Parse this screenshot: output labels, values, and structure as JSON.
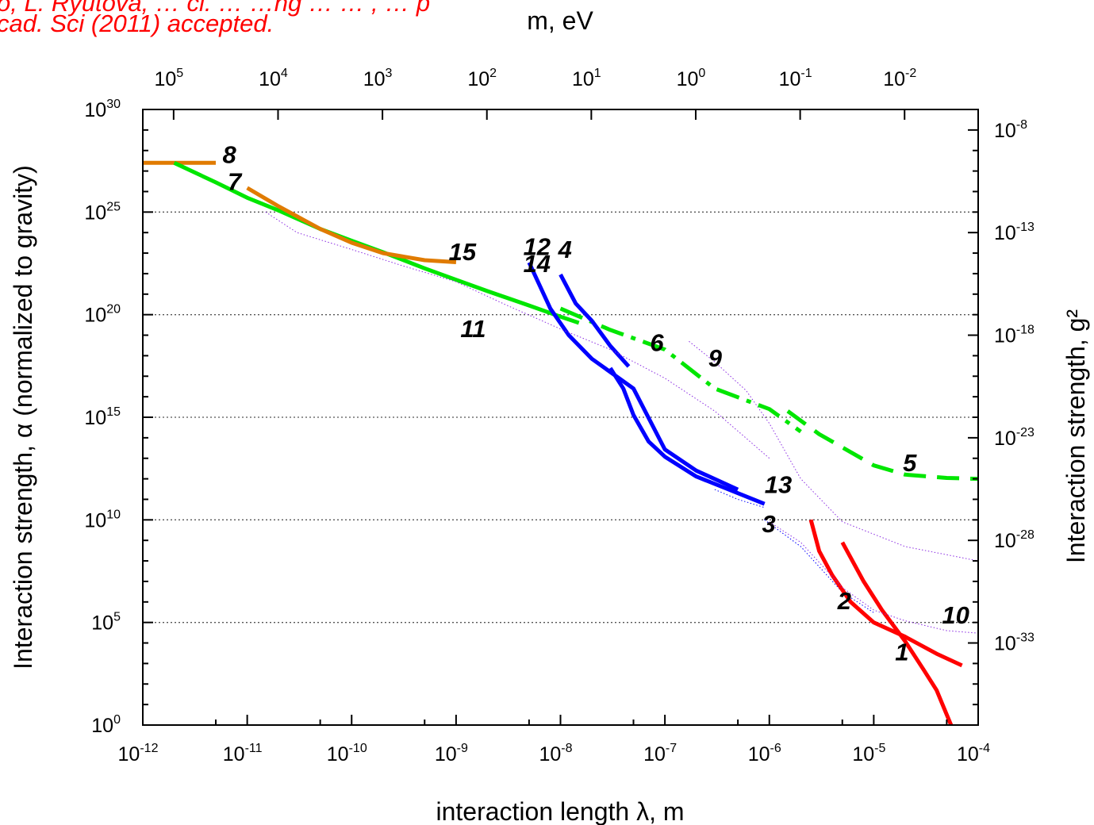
{
  "citation": {
    "line1": "o, L. Ryutova, … cl. …  …ng … … ,  …  p",
    "line2": "cad. Sci (2011) accepted."
  },
  "chart_data": {
    "type": "line",
    "title": "",
    "xlabel": "interaction length λ, m",
    "ylabel": "Interaction strength, α (normalized to gravity)",
    "x2label": "m, eV",
    "y2label": "Interaction strength, g²",
    "xscale": "log",
    "yscale": "log",
    "xlim": [
      1e-12,
      0.0001
    ],
    "ylim": [
      1,
      1e+30
    ],
    "x_ticks": [
      {
        "value": 1e-12,
        "base": "10",
        "exp": "-12"
      },
      {
        "value": 1e-11,
        "base": "10",
        "exp": "-11"
      },
      {
        "value": 1e-10,
        "base": "10",
        "exp": "-10"
      },
      {
        "value": 1e-09,
        "base": "10",
        "exp": "-9"
      },
      {
        "value": 1e-08,
        "base": "10",
        "exp": "-8"
      },
      {
        "value": 1e-07,
        "base": "10",
        "exp": "-7"
      },
      {
        "value": 1e-06,
        "base": "10",
        "exp": "-6"
      },
      {
        "value": 1e-05,
        "base": "10",
        "exp": "-5"
      },
      {
        "value": 0.0001,
        "base": "10",
        "exp": "-4"
      }
    ],
    "y_ticks": [
      {
        "value": 1,
        "base": "10",
        "exp": "0"
      },
      {
        "value": 100000.0,
        "base": "10",
        "exp": "5"
      },
      {
        "value": 10000000000.0,
        "base": "10",
        "exp": "10"
      },
      {
        "value": 1000000000000000.0,
        "base": "10",
        "exp": "15"
      },
      {
        "value": 1e+20,
        "base": "10",
        "exp": "20"
      },
      {
        "value": 1e+25,
        "base": "10",
        "exp": "25"
      },
      {
        "value": 1e+30,
        "base": "10",
        "exp": "30"
      }
    ],
    "x2_ticks": [
      {
        "ev": 100000.0,
        "base": "10",
        "exp": "5"
      },
      {
        "ev": 10000.0,
        "base": "10",
        "exp": "4"
      },
      {
        "ev": 1000.0,
        "base": "10",
        "exp": "3"
      },
      {
        "ev": 100.0,
        "base": "10",
        "exp": "2"
      },
      {
        "ev": 10.0,
        "base": "10",
        "exp": "1"
      },
      {
        "ev": 1.0,
        "base": "10",
        "exp": "0"
      },
      {
        "ev": 0.1,
        "base": "10",
        "exp": "-1"
      },
      {
        "ev": 0.01,
        "base": "10",
        "exp": "-2"
      }
    ],
    "y2_ticks": [
      {
        "alpha": 1e+29,
        "base": "10",
        "exp": "-8"
      },
      {
        "alpha": 1e+24,
        "base": "10",
        "exp": "-13"
      },
      {
        "alpha": 1e+19,
        "base": "10",
        "exp": "-18"
      },
      {
        "alpha": 100000000000000.0,
        "base": "10",
        "exp": "-23"
      },
      {
        "alpha": 1000000000.0,
        "base": "10",
        "exp": "-28"
      },
      {
        "alpha": 10000.0,
        "base": "10",
        "exp": "-33"
      }
    ],
    "grid": {
      "y": [
        100000.0,
        10000000000.0,
        1000000000000000.0,
        1e+20,
        1e+25
      ],
      "style": "dotted"
    },
    "curves": [
      {
        "label": "8",
        "color": "#e07b00",
        "style": "solid",
        "width": 5,
        "points": [
          [
            1e-12,
            2.5e+27
          ],
          [
            5e-12,
            2.5e+27
          ]
        ],
        "label_at": [
          5.8e-12,
          2.5e+27
        ]
      },
      {
        "label": "7",
        "color": "#00e600",
        "style": "solid",
        "width": 5,
        "points": [
          [
            2e-12,
            2.5e+27
          ],
          [
            5e-12,
            2.8e+26
          ],
          [
            1e-11,
            5e+25
          ],
          [
            2e-11,
            1.2e+25
          ],
          [
            5e-11,
            1.5e+24
          ],
          [
            1e-10,
            4e+23
          ],
          [
            2e-10,
            1.1e+23
          ],
          [
            5e-10,
            1.8e+22
          ],
          [
            1e-09,
            5e+21
          ],
          [
            2e-09,
            1.4e+21
          ],
          [
            5e-09,
            2.8e+20
          ],
          [
            1e-08,
            8e+19
          ],
          [
            1.5e-08,
            4e+19
          ]
        ],
        "label_at": [
          6.5e-12,
          1.2e+26
        ]
      },
      {
        "label": "15",
        "color": "#e07b00",
        "style": "solid",
        "width": 5,
        "points": [
          [
            1e-11,
            1.5e+26
          ],
          [
            2e-11,
            1.9e+25
          ],
          [
            5e-11,
            1.5e+24
          ],
          [
            1e-10,
            3.2e+23
          ],
          [
            2e-10,
            1e+23
          ],
          [
            5e-10,
            4.5e+22
          ],
          [
            1e-09,
            3.6e+22
          ]
        ],
        "label_at": [
          8.5e-10,
          4.5e+22
        ]
      },
      {
        "label": "6",
        "color": "#00e600",
        "style": "dashdot",
        "width": 5,
        "points": [
          [
            1e-08,
            2e+20
          ],
          [
            3e-08,
            1.8e+19
          ],
          [
            1e-07,
            2e+18
          ],
          [
            3e-07,
            2.5e+16
          ],
          [
            1e-06,
            2500000000000000.0
          ],
          [
            2e-06,
            200000000000000.0
          ]
        ],
        "label_at": [
          7.2e-08,
          1.7e+18
        ]
      },
      {
        "label": "5",
        "color": "#00e600",
        "style": "dash",
        "width": 5,
        "points": [
          [
            1.5e-06,
            2000000000000000.0
          ],
          [
            3e-06,
            150000000000000.0
          ],
          [
            6e-06,
            20000000000000.0
          ],
          [
            1e-05,
            4500000000000.0
          ],
          [
            2e-05,
            1600000000000.0
          ],
          [
            5e-05,
            1100000000000.0
          ],
          [
            0.0001,
            1000000000000.0
          ]
        ],
        "label_at": [
          1.9e-05,
          2400000000000.0
        ]
      },
      {
        "label": "12",
        "color": "#0000ff",
        "style": "solid",
        "width": 5,
        "points": [
          [
            5e-09,
            3.5e+22
          ],
          [
            8e-09,
            2e+20
          ],
          [
            1.2e-08,
            1e+19
          ],
          [
            2e-08,
            7e+17
          ],
          [
            5e-08,
            2.5e+16
          ],
          [
            1e-07,
            27000000000000.0
          ],
          [
            2e-07,
            2500000000000.0
          ],
          [
            5e-07,
            300000000000.0
          ]
        ],
        "label_at": [
          4.4e-09,
          8e+22
        ]
      },
      {
        "label": "4",
        "color": "#0000ff",
        "style": "solid",
        "width": 5,
        "points": [
          [
            1e-08,
            9e+21
          ],
          [
            1.4e-08,
            3.5e+20
          ],
          [
            2e-08,
            5e+19
          ],
          [
            3e-08,
            3e+18
          ],
          [
            4.5e-08,
            3e+17
          ]
        ],
        "label_at": [
          9.5e-09,
          6e+22
        ]
      },
      {
        "label": "14",
        "color": "#0000ff",
        "style": "solid",
        "width": 5,
        "points": [
          [
            3e-08,
            2.5e+17
          ],
          [
            4e-08,
            2.5e+16
          ],
          [
            5e-08,
            1300000000000000.0
          ],
          [
            7e-08,
            65000000000000.0
          ],
          [
            1e-07,
            12000000000000.0
          ],
          [
            2e-07,
            1300000000000.0
          ],
          [
            5e-07,
            200000000000.0
          ],
          [
            9e-07,
            60000000000.0
          ]
        ],
        "label_at": [
          4.4e-09,
          1.2e+22
        ]
      },
      {
        "label": "13",
        "color": "#0000ff",
        "style": "dotted-thin",
        "width": 1,
        "points": [
          [
            3e-07,
            300000000000.0
          ],
          [
            5e-07,
            100000000000.0
          ],
          [
            9e-07,
            40000000000.0
          ]
        ],
        "label_at": [
          9e-07,
          200000000000.0
        ]
      },
      {
        "label": "3",
        "color": "#0000ff",
        "style": "dotted-thin",
        "width": 1,
        "points": [
          [
            9e-07,
            10000000000.0
          ],
          [
            2e-06,
            500000000.0
          ],
          [
            5e-06,
            3000000.0
          ],
          [
            1e-05,
            300000.0
          ]
        ],
        "label_at": [
          8.5e-07,
          2500000000.0
        ]
      },
      {
        "label": "2",
        "color": "#ff0000",
        "style": "solid",
        "width": 5,
        "points": [
          [
            2.5e-06,
            10000000000.0
          ],
          [
            3e-06,
            300000000.0
          ],
          [
            4e-06,
            20000000.0
          ],
          [
            6e-06,
            1000000.0
          ],
          [
            1e-05,
            100000.0
          ],
          [
            2e-05,
            20000.0
          ],
          [
            4e-05,
            3000.0
          ],
          [
            7e-05,
            800.0
          ]
        ],
        "label_at": [
          4.5e-06,
          450000.0
        ]
      },
      {
        "label": "1",
        "color": "#ff0000",
        "style": "solid",
        "width": 5,
        "points": [
          [
            5e-06,
            800000000.0
          ],
          [
            8e-06,
            10000000.0
          ],
          [
            1.2e-05,
            400000.0
          ],
          [
            2e-05,
            12000.0
          ],
          [
            3e-05,
            500.0
          ],
          [
            4e-05,
            50.0
          ],
          [
            5.5e-05,
            1
          ]
        ],
        "label_at": [
          1.6e-05,
          1400.0
        ]
      },
      {
        "label": "9",
        "color": "#8a2be2",
        "style": "dotted-thin",
        "width": 1,
        "points": [
          [
            1.7e-07,
            5e+18
          ],
          [
            3e-07,
            5e+17
          ],
          [
            6e-07,
            2e+16
          ],
          [
            1e-06,
            500000000000000.0
          ],
          [
            2e-06,
            1000000000000.0
          ],
          [
            5e-06,
            8000000000.0
          ],
          [
            1e-05,
            2000000000.0
          ],
          [
            2e-05,
            500000000.0
          ],
          [
            5e-05,
            200000000.0
          ],
          [
            0.0001,
            100000000.0
          ]
        ],
        "label_at": [
          2.6e-07,
          3e+17
        ]
      },
      {
        "label": "10",
        "color": "#8a2be2",
        "style": "dotted-thin",
        "width": 1,
        "points": [
          [
            1e-06,
            8000000000.0
          ],
          [
            2e-06,
            800000000.0
          ],
          [
            5e-06,
            5000000.0
          ],
          [
            1e-05,
            400000.0
          ],
          [
            2e-05,
            120000.0
          ],
          [
            5e-05,
            40000.0
          ],
          [
            0.0001,
            30000.0
          ]
        ],
        "label_at": [
          4.5e-05,
          90000.0
        ]
      },
      {
        "label": "11",
        "color": "#8a2be2",
        "style": "dotted-thin",
        "width": 1,
        "points": [
          [
            1.5e-11,
            1e+25
          ],
          [
            3e-11,
            1e+24
          ],
          [
            1e-10,
            1.5e+23
          ],
          [
            3e-10,
            2.5e+22
          ],
          [
            1e-09,
            4e+21
          ],
          [
            3e-09,
            3e+20
          ],
          [
            1e-08,
            2e+19
          ],
          [
            3e-08,
            2e+18
          ],
          [
            1e-07,
            8e+16
          ],
          [
            3e-07,
            2000000000000000.0
          ],
          [
            1e-06,
            10000000000000.0
          ]
        ],
        "label_at": [
          1.1e-09,
          8e+18
        ]
      }
    ]
  }
}
